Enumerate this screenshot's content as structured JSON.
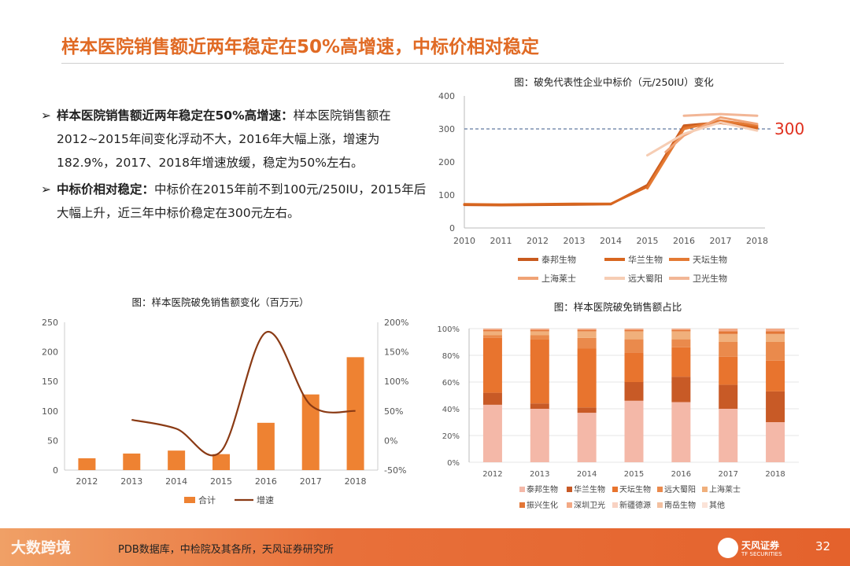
{
  "slide": {
    "title": "样本医院销售额近两年稳定在50%高增速，中标价相对稳定",
    "page_number": "32"
  },
  "bullets": [
    {
      "mark": "➢",
      "heading": "样本医院销售额近两年稳定在50%高增速：",
      "body": "样本医院销售额在2012~2015年间变化浮动不大，2016年大幅上涨，增速为182.9%，2017、2018年增速放缓，稳定为50%左右。"
    },
    {
      "mark": "➢",
      "heading": "中标价相对稳定：",
      "body": "中标价在2015年前不到100元/250IU，2015年后大幅上升，近三年中标价稳定在300元左右。"
    }
  ],
  "footer": {
    "source": "PDB数据库，中检院及其各所，天风证券研究所",
    "watermark": "大数跨境",
    "logo_text": "天风证券",
    "logo_sub": "TF SECURITIES"
  },
  "colors": {
    "accent": "#e06a24",
    "footer_start": "#f0a066",
    "footer_end": "#e4622c"
  },
  "chart_data": [
    {
      "type": "line",
      "title": "图：破免代表性企业中标价（元/250IU）变化",
      "x": [
        "2010",
        "2011",
        "2012",
        "2013",
        "2014",
        "2015",
        "2016",
        "2017",
        "2018"
      ],
      "ylim": [
        0,
        400
      ],
      "yticks": [
        "0",
        "100",
        "200",
        "300",
        "400"
      ],
      "reference_line": {
        "value": 300,
        "label": "300"
      },
      "series": [
        {
          "name": "泰邦生物",
          "color": "#c85a1e",
          "points": [
            [
              "2010",
              70
            ],
            [
              "2011",
              69
            ],
            [
              "2012",
              70
            ],
            [
              "2013",
              71
            ],
            [
              "2014",
              72
            ],
            [
              "2015",
              130
            ],
            [
              "2016",
              310
            ],
            [
              "2017",
              320
            ],
            [
              "2018",
              305
            ]
          ]
        },
        {
          "name": "华兰生物",
          "color": "#d8661f",
          "points": [
            [
              "2010",
              72
            ],
            [
              "2011",
              71
            ],
            [
              "2012",
              72
            ],
            [
              "2013",
              73
            ],
            [
              "2014",
              73
            ],
            [
              "2015",
              125
            ],
            [
              "2016",
              305
            ],
            [
              "2017",
              318
            ],
            [
              "2018",
              302
            ]
          ]
        },
        {
          "name": "天坛生物",
          "color": "#e47a34",
          "points": [
            [
              "2015",
              120
            ],
            [
              "2016",
              300
            ],
            [
              "2017",
              325
            ],
            [
              "2018",
              310
            ]
          ]
        },
        {
          "name": "上海莱士",
          "color": "#f0a376",
          "points": [
            [
              "2015.5",
              230
            ],
            [
              "2016",
              280
            ],
            [
              "2017",
              335
            ],
            [
              "2018",
              315
            ]
          ]
        },
        {
          "name": "远大蜀阳",
          "color": "#f6cdb4",
          "points": [
            [
              "2015",
              220
            ],
            [
              "2016",
              285
            ],
            [
              "2017",
              320
            ],
            [
              "2018",
              295
            ]
          ]
        },
        {
          "name": "卫光生物",
          "color": "#f2b696",
          "points": [
            [
              "2016",
              340
            ],
            [
              "2017",
              345
            ],
            [
              "2018",
              340
            ]
          ]
        }
      ]
    },
    {
      "type": "bar",
      "title": "图：样本医院破免销售额变化（百万元）",
      "categories": [
        "2012",
        "2013",
        "2014",
        "2015",
        "2016",
        "2017",
        "2018"
      ],
      "series": [
        {
          "name": "合计",
          "type": "bar",
          "axis": "left",
          "values": [
            20,
            28,
            33,
            27,
            80,
            128,
            191
          ]
        },
        {
          "name": "增速",
          "type": "line",
          "axis": "right",
          "values": [
            null,
            35,
            20,
            -18,
            183,
            60,
            50
          ]
        }
      ],
      "ylim": [
        0,
        250
      ],
      "yticks": [
        "0",
        "50",
        "100",
        "150",
        "200",
        "250"
      ],
      "y2lim": [
        -50,
        200
      ],
      "y2ticks": [
        "-50%",
        "0%",
        "50%",
        "100%",
        "150%",
        "200%"
      ]
    },
    {
      "type": "bar",
      "stacked": true,
      "title": "图：样本医院破免销售额占比",
      "categories": [
        "2012",
        "2013",
        "2014",
        "2015",
        "2016",
        "2017",
        "2018"
      ],
      "ylim": [
        0,
        100
      ],
      "yticks": [
        "0%",
        "20%",
        "40%",
        "60%",
        "80%",
        "100%"
      ],
      "series": [
        {
          "name": "泰邦生物",
          "color": "#f4b8a8",
          "values": [
            43,
            40,
            37,
            46,
            45,
            40,
            30
          ]
        },
        {
          "name": "华兰生物",
          "color": "#c85a26",
          "values": [
            9,
            4,
            4,
            14,
            19,
            18,
            23
          ]
        },
        {
          "name": "天坛生物",
          "color": "#e8742e",
          "values": [
            41,
            48,
            44,
            22,
            22,
            21,
            23
          ]
        },
        {
          "name": "远大蜀阳",
          "color": "#ea8a4c",
          "values": [
            2,
            3,
            8,
            10,
            6,
            11,
            14
          ]
        },
        {
          "name": "上海莱士",
          "color": "#f0b07c",
          "values": [
            3,
            3,
            5,
            6,
            6,
            6,
            6
          ]
        },
        {
          "name": "振兴生化",
          "color": "#e37636",
          "values": [
            1,
            1,
            1,
            1,
            1,
            2,
            2
          ]
        },
        {
          "name": "深圳卫光",
          "color": "#f3a985",
          "values": [
            1,
            1,
            1,
            1,
            1,
            2,
            2
          ]
        },
        {
          "name": "新疆德源",
          "color": "#f8d2c2",
          "values": [
            0,
            0,
            0,
            0,
            0,
            0,
            0
          ]
        },
        {
          "name": "南岳生物",
          "color": "#f3c0a0",
          "values": [
            0,
            0,
            0,
            0,
            0,
            0,
            0
          ]
        },
        {
          "name": "其他",
          "color": "#fbe3d8",
          "values": [
            0,
            0,
            0,
            0,
            0,
            0,
            0
          ]
        }
      ]
    }
  ]
}
